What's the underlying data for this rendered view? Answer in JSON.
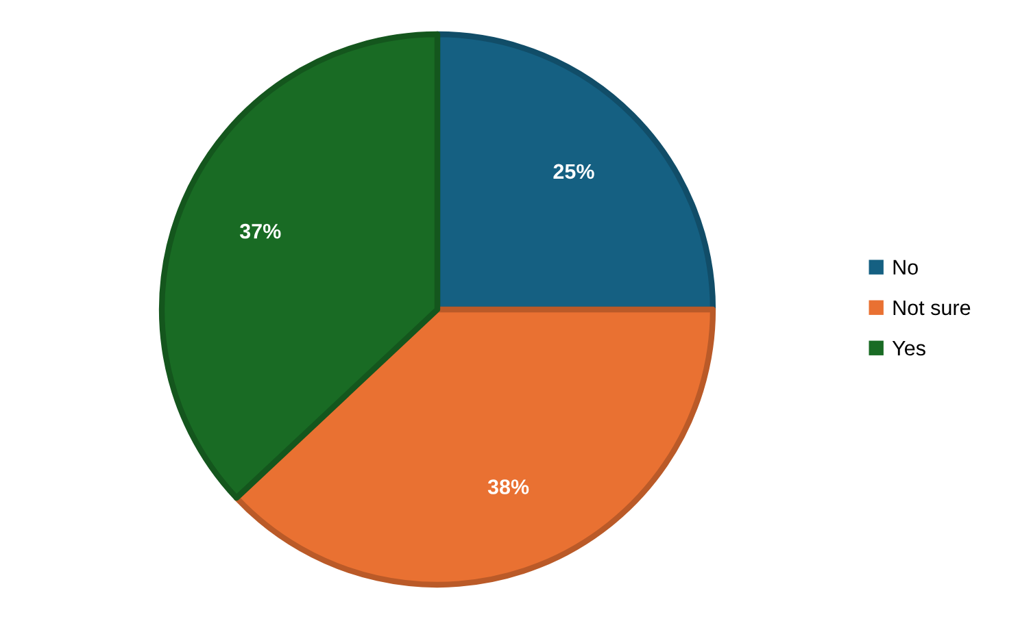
{
  "chart_data": {
    "type": "pie",
    "categories": [
      "No",
      "Not sure",
      "Yes"
    ],
    "values": [
      25,
      38,
      37
    ],
    "colors": [
      "#156082",
      "#e97132",
      "#196b24"
    ],
    "value_labels": [
      "25%",
      "38%",
      "37%"
    ],
    "legend": "right"
  }
}
